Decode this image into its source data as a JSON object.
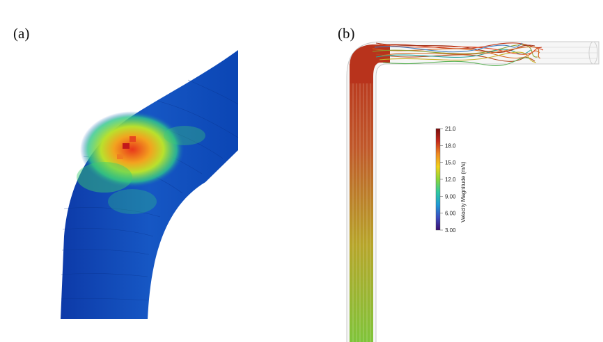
{
  "panels": {
    "a": {
      "label": "(a)"
    },
    "b": {
      "label": "(b)"
    }
  },
  "colorbar": {
    "title": "Velocity Magnitude (m/s)",
    "ticks": [
      "21.0",
      "18.0",
      "15.0",
      "12.0",
      "9.00",
      "6.00",
      "3.00"
    ],
    "min": 3.0,
    "max": 21.0,
    "colors": [
      "#3b0f70",
      "#3b4cc0",
      "#1f9ad6",
      "#2fc9a0",
      "#8ad63a",
      "#f2d21b",
      "#f08a22",
      "#c5291b",
      "#7a0d0d"
    ]
  }
}
